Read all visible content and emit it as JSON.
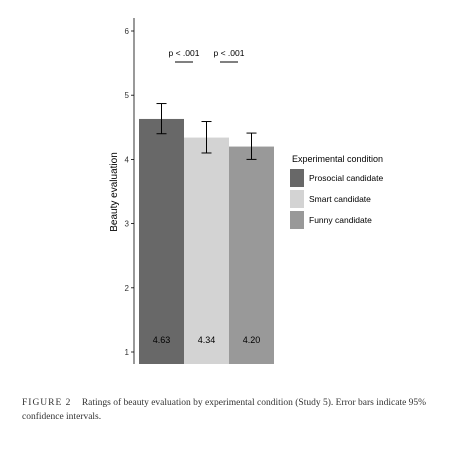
{
  "chart_data": {
    "type": "bar",
    "categories": [
      "Prosocial candidate",
      "Smart candidate",
      "Funny candidate"
    ],
    "values": [
      4.63,
      4.34,
      4.2
    ],
    "value_labels": [
      "4.63",
      "4.34",
      "4.20"
    ],
    "error_bars": [
      [
        4.4,
        4.87
      ],
      [
        4.1,
        4.59
      ],
      [
        4.0,
        4.41
      ]
    ],
    "colors": [
      "#686868",
      "#d3d3d3",
      "#999999"
    ],
    "ylabel": "Beauty evaluation",
    "ylim": [
      1,
      6
    ],
    "yticks": [
      "1",
      "2",
      "3",
      "4",
      "5",
      "6"
    ],
    "legend_title": "Experimental condition",
    "legend_placement": "right",
    "annotations": [
      {
        "text": "p < .001",
        "between": [
          0,
          1
        ]
      },
      {
        "text": "p < .001",
        "between": [
          1,
          2
        ]
      }
    ],
    "grid": false
  },
  "caption": {
    "label": "FIGURE 2",
    "text": "Ratings of beauty evaluation by experimental condition (Study 5). Error bars indicate 95% confidence intervals."
  }
}
